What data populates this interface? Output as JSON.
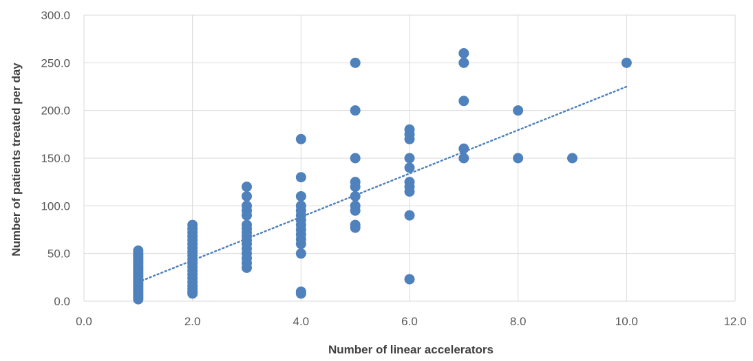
{
  "chart_data": {
    "type": "scatter",
    "title": "",
    "xlabel": "Number of linear accelerators",
    "ylabel": "Number of patients treated per day",
    "xlim": [
      0,
      12
    ],
    "ylim": [
      0,
      300
    ],
    "x_ticks": [
      "0.0",
      "2.0",
      "4.0",
      "6.0",
      "8.0",
      "10.0",
      "12.0"
    ],
    "y_ticks": [
      "0.0",
      "50.0",
      "100.0",
      "150.0",
      "200.0",
      "250.0",
      "300.0"
    ],
    "grid": "vertical and horizontal major gridlines",
    "legend": "none",
    "marker_color": "#4f81bd",
    "trendline": {
      "type": "linear",
      "style": "dotted",
      "x": [
        1,
        10
      ],
      "y": [
        20,
        225
      ]
    },
    "series": [
      {
        "points": [
          [
            1,
            2
          ],
          [
            1,
            4
          ],
          [
            1,
            6
          ],
          [
            1,
            8
          ],
          [
            1,
            10
          ],
          [
            1,
            12
          ],
          [
            1,
            14
          ],
          [
            1,
            16
          ],
          [
            1,
            18
          ],
          [
            1,
            20
          ],
          [
            1,
            22
          ],
          [
            1,
            24
          ],
          [
            1,
            26
          ],
          [
            1,
            28
          ],
          [
            1,
            30
          ],
          [
            1,
            32
          ],
          [
            1,
            34
          ],
          [
            1,
            36
          ],
          [
            1,
            38
          ],
          [
            1,
            40
          ],
          [
            1,
            42
          ],
          [
            1,
            44
          ],
          [
            1,
            46
          ],
          [
            1,
            48
          ],
          [
            1,
            50
          ],
          [
            1,
            53
          ],
          [
            2,
            8
          ],
          [
            2,
            10
          ],
          [
            2,
            13
          ],
          [
            2,
            16
          ],
          [
            2,
            20
          ],
          [
            2,
            24
          ],
          [
            2,
            28
          ],
          [
            2,
            32
          ],
          [
            2,
            36
          ],
          [
            2,
            40
          ],
          [
            2,
            44
          ],
          [
            2,
            48
          ],
          [
            2,
            52
          ],
          [
            2,
            56
          ],
          [
            2,
            60
          ],
          [
            2,
            64
          ],
          [
            2,
            68
          ],
          [
            2,
            72
          ],
          [
            2,
            76
          ],
          [
            2,
            80
          ],
          [
            3,
            35
          ],
          [
            3,
            40
          ],
          [
            3,
            45
          ],
          [
            3,
            50
          ],
          [
            3,
            55
          ],
          [
            3,
            60
          ],
          [
            3,
            64
          ],
          [
            3,
            68
          ],
          [
            3,
            72
          ],
          [
            3,
            76
          ],
          [
            3,
            80
          ],
          [
            3,
            90
          ],
          [
            3,
            95
          ],
          [
            3,
            100
          ],
          [
            3,
            110
          ],
          [
            3,
            120
          ],
          [
            4,
            8
          ],
          [
            4,
            10
          ],
          [
            4,
            50
          ],
          [
            4,
            60
          ],
          [
            4,
            65
          ],
          [
            4,
            70
          ],
          [
            4,
            75
          ],
          [
            4,
            80
          ],
          [
            4,
            85
          ],
          [
            4,
            90
          ],
          [
            4,
            95
          ],
          [
            4,
            100
          ],
          [
            4,
            110
          ],
          [
            4,
            130
          ],
          [
            4,
            170
          ],
          [
            5,
            77
          ],
          [
            5,
            80
          ],
          [
            5,
            95
          ],
          [
            5,
            100
          ],
          [
            5,
            110
          ],
          [
            5,
            120
          ],
          [
            5,
            125
          ],
          [
            5,
            150
          ],
          [
            5,
            200
          ],
          [
            5,
            250
          ],
          [
            6,
            23
          ],
          [
            6,
            90
          ],
          [
            6,
            115
          ],
          [
            6,
            120
          ],
          [
            6,
            125
          ],
          [
            6,
            140
          ],
          [
            6,
            150
          ],
          [
            6,
            170
          ],
          [
            6,
            175
          ],
          [
            6,
            180
          ],
          [
            7,
            150
          ],
          [
            7,
            160
          ],
          [
            7,
            210
          ],
          [
            7,
            250
          ],
          [
            7,
            260
          ],
          [
            8,
            150
          ],
          [
            8,
            200
          ],
          [
            9,
            150
          ],
          [
            10,
            250
          ]
        ]
      }
    ]
  }
}
